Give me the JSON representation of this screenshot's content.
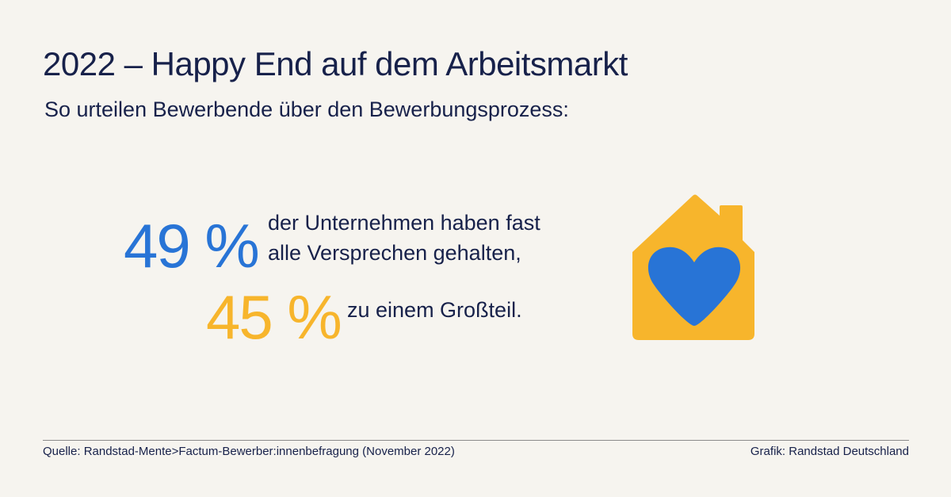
{
  "header": {
    "title": "2022 – Happy End auf dem Arbeitsmarkt",
    "subtitle": "So urteilen Bewerbende über den Bewerbungsprozess:"
  },
  "stats": [
    {
      "value": "49 %",
      "text_line_1": "der Unternehmen haben fast",
      "text_line_2": "alle Versprechen gehalten,",
      "color": "#2874d6"
    },
    {
      "value": "45 %",
      "text_line_1": "zu einem Großteil.",
      "color": "#f7b52c"
    }
  ],
  "icon": {
    "name": "house-heart-icon",
    "house_color": "#f7b52c",
    "heart_color": "#2874d6"
  },
  "footer": {
    "source": "Quelle: Randstad-Mente>Factum-Bewerber:innenbefragung (November 2022)",
    "credit": "Grafik: Randstad Deutschland"
  }
}
